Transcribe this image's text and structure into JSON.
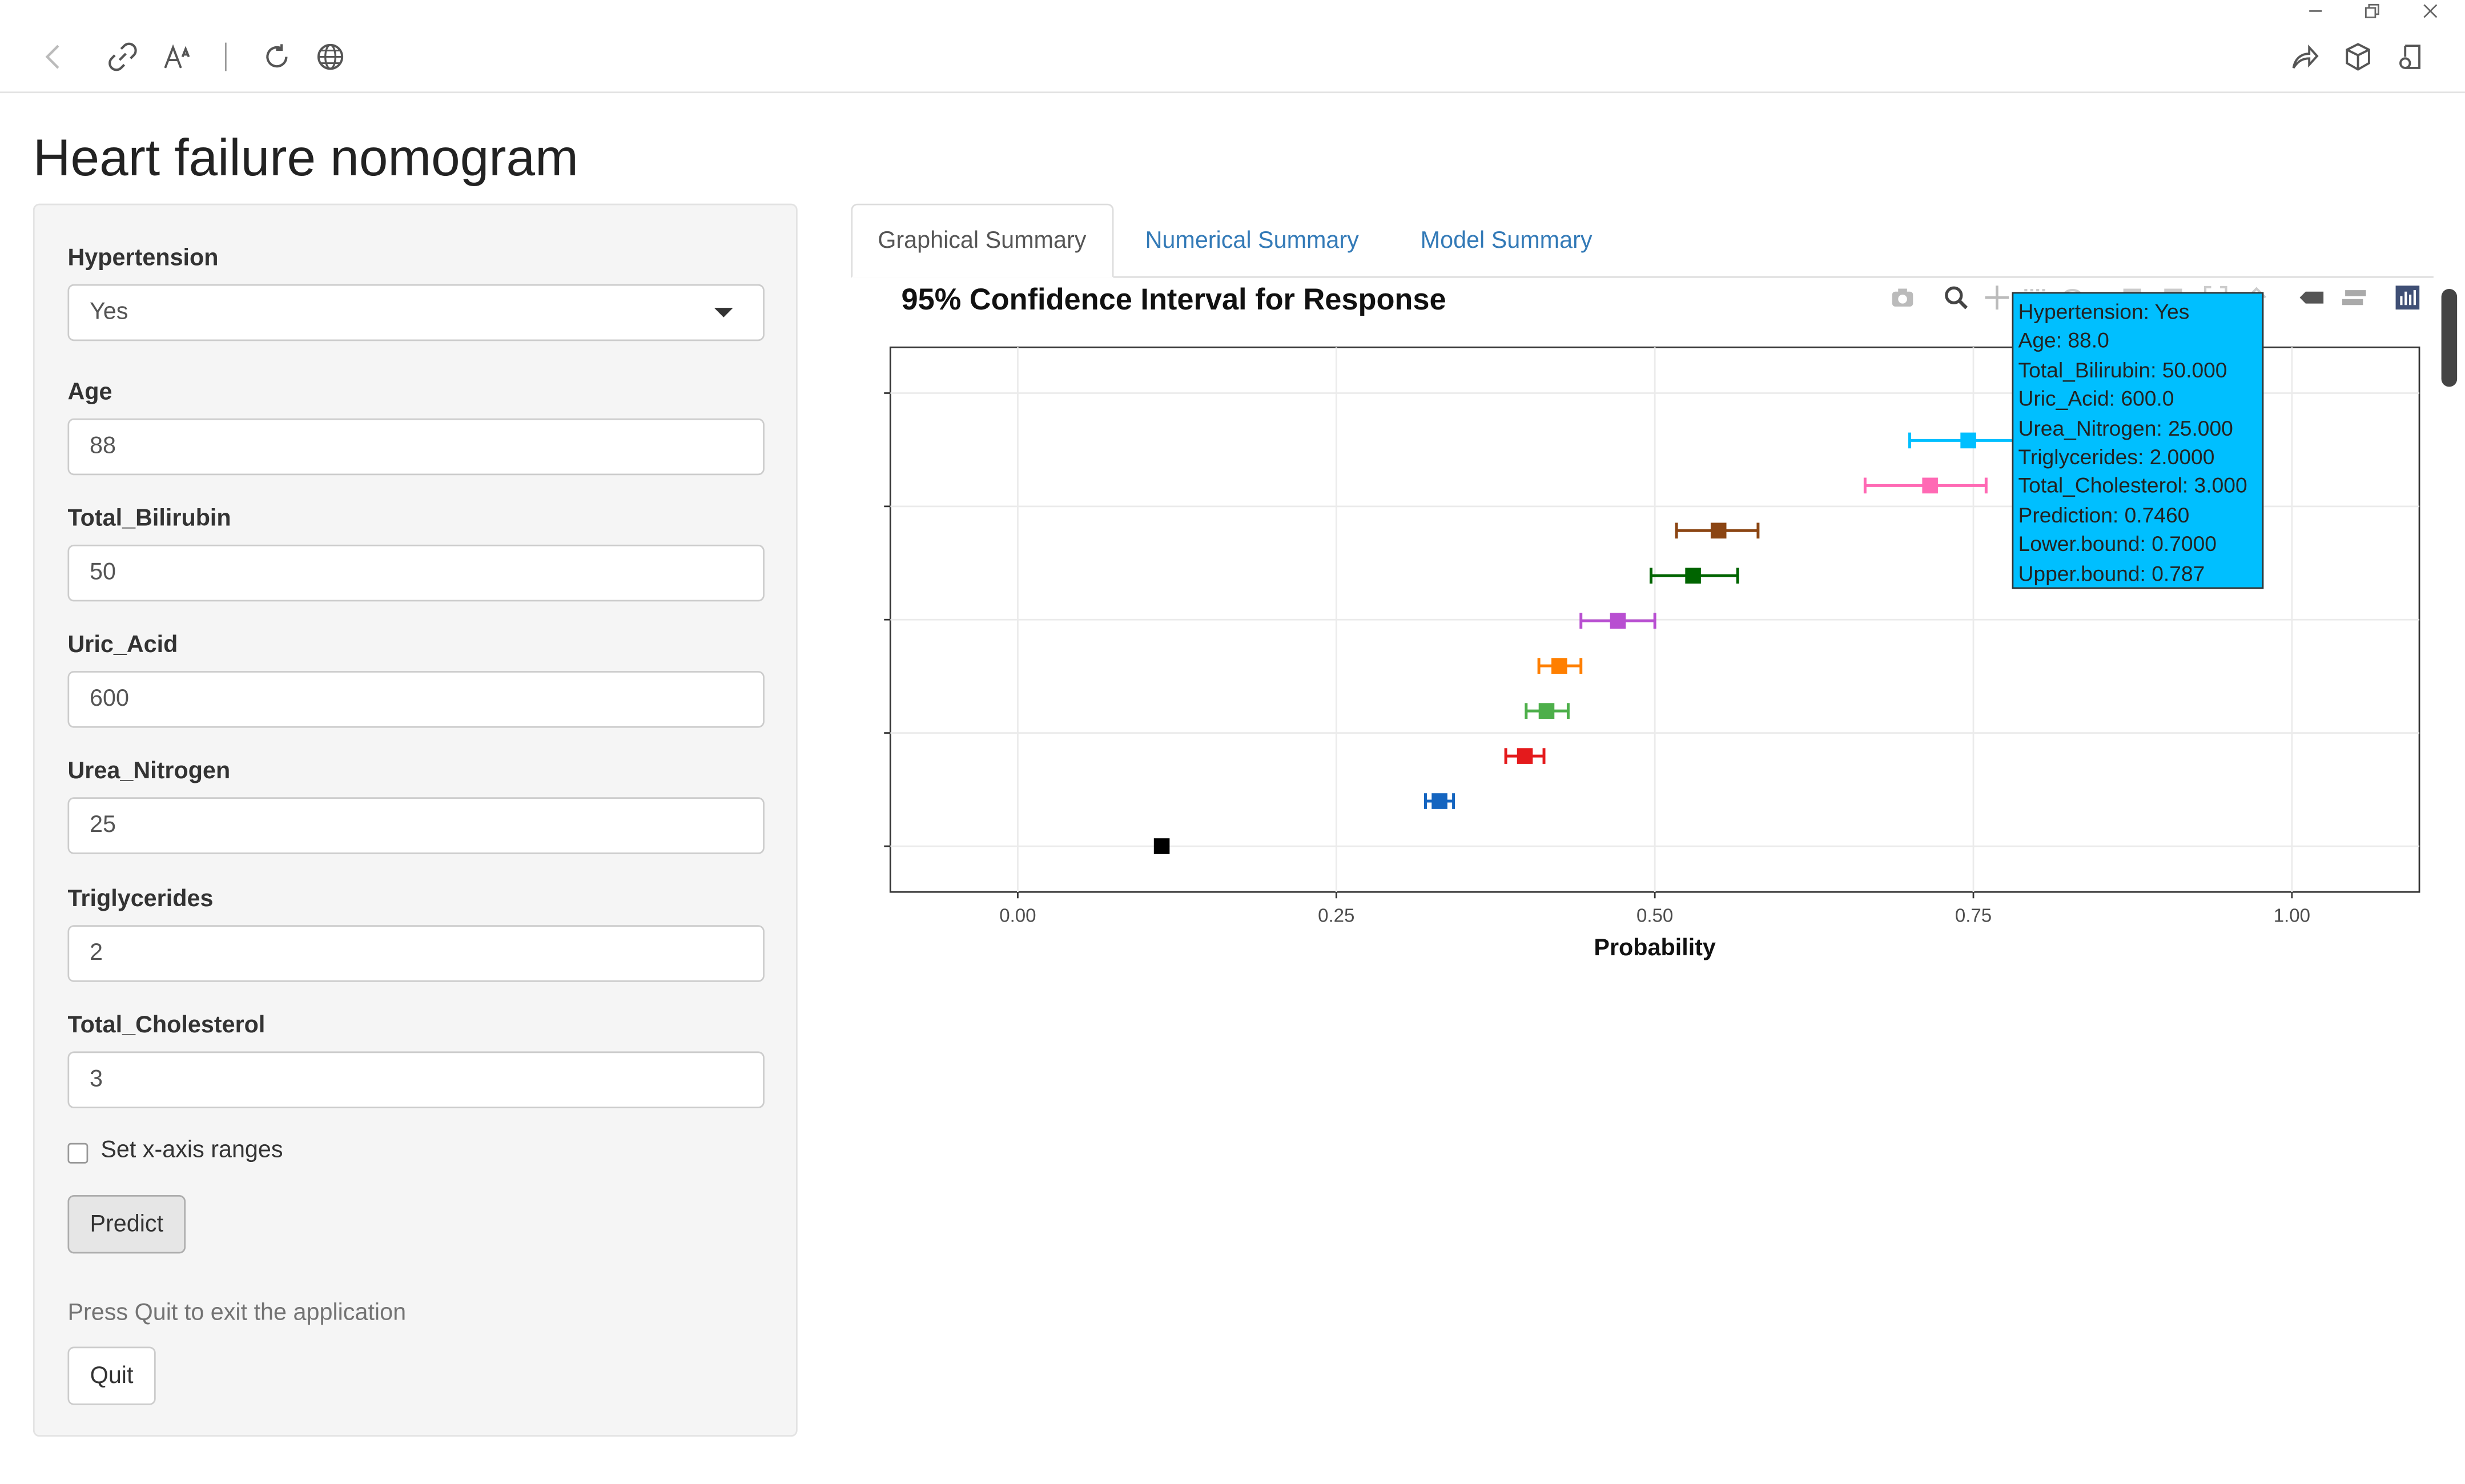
{
  "app": {
    "title": "Heart failure nomogram"
  },
  "toolbar": {
    "icons": [
      "back-icon",
      "link-icon",
      "read-aloud-icon",
      "refresh-icon",
      "globe-icon",
      "share-icon",
      "extensions-icon",
      "reading-list-icon"
    ],
    "window_controls": [
      "minimize-icon",
      "restore-icon",
      "close-icon"
    ]
  },
  "sidebar": {
    "fields": [
      {
        "label": "Hypertension",
        "value": "Yes",
        "type": "select"
      },
      {
        "label": "Age",
        "value": "88",
        "type": "number"
      },
      {
        "label": "Total_Bilirubin",
        "value": "50",
        "type": "number"
      },
      {
        "label": "Uric_Acid",
        "value": "600",
        "type": "number"
      },
      {
        "label": "Urea_Nitrogen",
        "value": "25",
        "type": "number"
      },
      {
        "label": "Triglycerides",
        "value": "2",
        "type": "number"
      },
      {
        "label": "Total_Cholesterol",
        "value": "3",
        "type": "number"
      }
    ],
    "checkbox_label": "Set x-axis ranges",
    "checkbox_checked": false,
    "predict_label": "Predict",
    "help_text": "Press Quit to exit the application",
    "quit_label": "Quit"
  },
  "tabs": [
    {
      "label": "Graphical Summary",
      "active": true
    },
    {
      "label": "Numerical Summary",
      "active": false
    },
    {
      "label": "Model Summary",
      "active": false
    }
  ],
  "modebar": {
    "icons": [
      "camera-icon",
      "zoom-icon",
      "pan-icon",
      "select-icon",
      "lasso-icon",
      "zoom-in-icon",
      "zoom-out-icon",
      "autoscale-icon",
      "reset-icon",
      "hover-closest-icon",
      "hover-compare-icon",
      "plotly-logo-icon"
    ]
  },
  "chart_data": {
    "type": "scatter",
    "title": "95% Confidence Interval for Response",
    "xlabel": "Probability",
    "ylabel": "",
    "xlim": [
      -0.1,
      1.1
    ],
    "xticks": [
      "0.00",
      "0.25",
      "0.50",
      "0.75",
      "1.00"
    ],
    "xtick_values": [
      0,
      0.25,
      0.5,
      0.75,
      1.0
    ],
    "grid": true,
    "series": [
      {
        "value": 0.113,
        "lower": 0.113,
        "upper": 0.113,
        "color": "#000000"
      },
      {
        "value": 0.331,
        "lower": 0.32,
        "upper": 0.342,
        "color": "#1565c0"
      },
      {
        "value": 0.398,
        "lower": 0.383,
        "upper": 0.413,
        "color": "#e41a1c"
      },
      {
        "value": 0.415,
        "lower": 0.399,
        "upper": 0.432,
        "color": "#4daf4a"
      },
      {
        "value": 0.425,
        "lower": 0.409,
        "upper": 0.442,
        "color": "#ff7f00"
      },
      {
        "value": 0.471,
        "lower": 0.442,
        "upper": 0.5,
        "color": "#b84fd1"
      },
      {
        "value": 0.53,
        "lower": 0.497,
        "upper": 0.565,
        "color": "#006400"
      },
      {
        "value": 0.55,
        "lower": 0.517,
        "upper": 0.581,
        "color": "#8b4513"
      },
      {
        "value": 0.716,
        "lower": 0.665,
        "upper": 0.76,
        "color": "#ff69b4"
      },
      {
        "value": 0.746,
        "lower": 0.7,
        "upper": 0.787,
        "color": "#00bfff"
      }
    ],
    "tooltip": [
      "Hypertension: Yes",
      "Age: 88.0",
      "Total_Bilirubin: 50.000",
      "Uric_Acid: 600.0",
      "Urea_Nitrogen: 25.000",
      "Triglycerides: 2.0000",
      "Total_Cholesterol: 3.000",
      "Prediction: 0.7460",
      "Lower.bound: 0.7000",
      "Upper.bound: 0.787"
    ]
  }
}
